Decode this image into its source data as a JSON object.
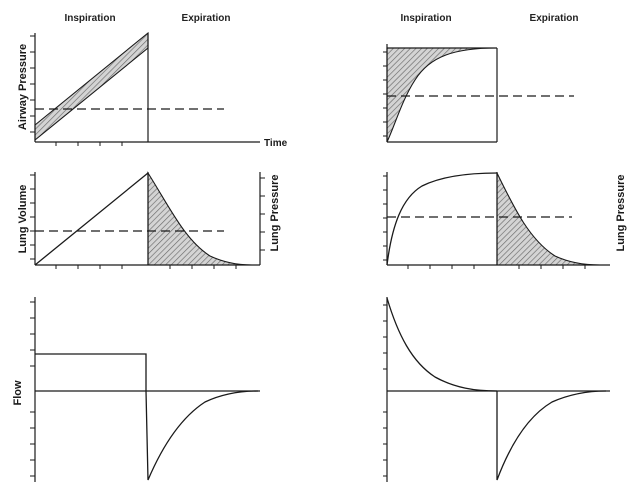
{
  "headers": {
    "left_inspiration": "Inspiration",
    "left_expiration": "Expiration",
    "right_inspiration": "Inspiration",
    "right_expiration": "Expiration"
  },
  "labels": {
    "airway_pressure": "Airway Pressure",
    "time": "Time",
    "lung_volume": "Lung Volume",
    "lung_pressure_left": "Lung Pressure",
    "lung_pressure_right": "Lung Pressure",
    "flow": "Flow"
  },
  "colors": {
    "ink": "#1a1a1a",
    "hatch_fill": "#d4d4d4",
    "background": "#ffffff"
  }
}
